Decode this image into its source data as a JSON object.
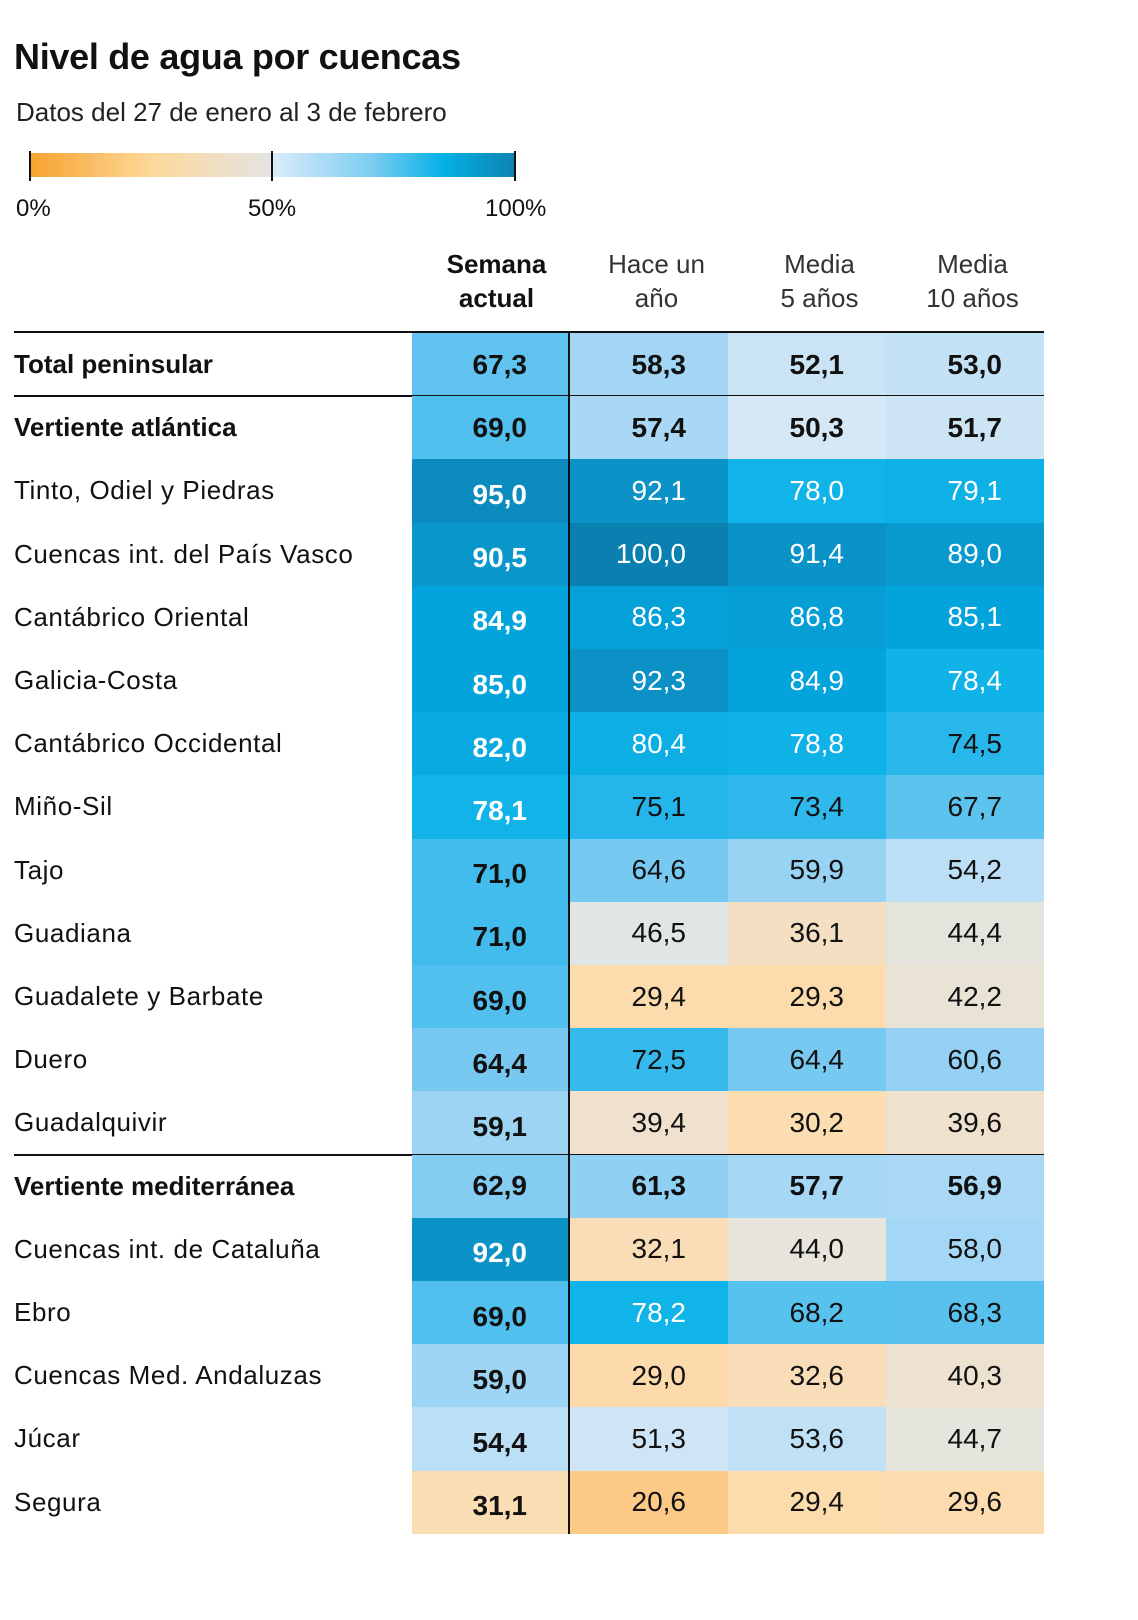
{
  "chart_data": {
    "type": "heatmap",
    "title": "Nivel de agua por cuencas",
    "subtitle": "Datos del 27 de enero al 3 de febrero",
    "legend": {
      "labels": [
        "0%",
        "50%",
        "100%"
      ],
      "range": [
        0,
        100
      ],
      "colors": {
        "low": "#f7a22e",
        "mid": "#e4e4e2",
        "high": "#0c82b0"
      }
    },
    "columns": [
      {
        "line1": "Semana",
        "line2": "actual"
      },
      {
        "line1": "Hace un",
        "line2": "año"
      },
      {
        "line1": "Media",
        "line2": "5 años"
      },
      {
        "line1": "Media",
        "line2": "10 años"
      }
    ],
    "rows": [
      {
        "name": "Total peninsular",
        "summary": true,
        "values": [
          "67,3",
          "58,3",
          "52,1",
          "53,0"
        ]
      },
      {
        "name": "Vertiente atlántica",
        "summary": true,
        "values": [
          "69,0",
          "57,4",
          "50,3",
          "51,7"
        ]
      },
      {
        "name": "Tinto, Odiel y Piedras",
        "values": [
          "95,0",
          "92,1",
          "78,0",
          "79,1"
        ]
      },
      {
        "name": "Cuencas int. del País Vasco",
        "values": [
          "90,5",
          "100,0",
          "91,4",
          "89,0"
        ]
      },
      {
        "name": "Cantábrico Oriental",
        "values": [
          "84,9",
          "86,3",
          "86,8",
          "85,1"
        ]
      },
      {
        "name": "Galicia-Costa",
        "values": [
          "85,0",
          "92,3",
          "84,9",
          "78,4"
        ]
      },
      {
        "name": "Cantábrico Occidental",
        "values": [
          "82,0",
          "80,4",
          "78,8",
          "74,5"
        ]
      },
      {
        "name": "Miño-Sil",
        "values": [
          "78,1",
          "75,1",
          "73,4",
          "67,7"
        ]
      },
      {
        "name": "Tajo",
        "values": [
          "71,0",
          "64,6",
          "59,9",
          "54,2"
        ]
      },
      {
        "name": "Guadiana",
        "values": [
          "71,0",
          "46,5",
          "36,1",
          "44,4"
        ]
      },
      {
        "name": "Guadalete y Barbate",
        "values": [
          "69,0",
          "29,4",
          "29,3",
          "42,2"
        ]
      },
      {
        "name": "Duero",
        "values": [
          "64,4",
          "72,5",
          "64,4",
          "60,6"
        ]
      },
      {
        "name": "Guadalquivir",
        "values": [
          "59,1",
          "39,4",
          "30,2",
          "39,6"
        ]
      },
      {
        "name": "Vertiente mediterránea",
        "summary": true,
        "values": [
          "62,9",
          "61,3",
          "57,7",
          "56,9"
        ]
      },
      {
        "name": "Cuencas int. de Cataluña",
        "values": [
          "92,0",
          "32,1",
          "44,0",
          "58,0"
        ]
      },
      {
        "name": "Ebro",
        "values": [
          "69,0",
          "78,2",
          "68,2",
          "68,3"
        ]
      },
      {
        "name": "Cuencas Med. Andaluzas",
        "values": [
          "59,0",
          "29,0",
          "32,6",
          "40,3"
        ]
      },
      {
        "name": "Júcar",
        "values": [
          "54,4",
          "51,3",
          "53,6",
          "44,7"
        ]
      },
      {
        "name": "Segura",
        "values": [
          "31,1",
          "20,6",
          "29,4",
          "29,6"
        ]
      }
    ]
  }
}
